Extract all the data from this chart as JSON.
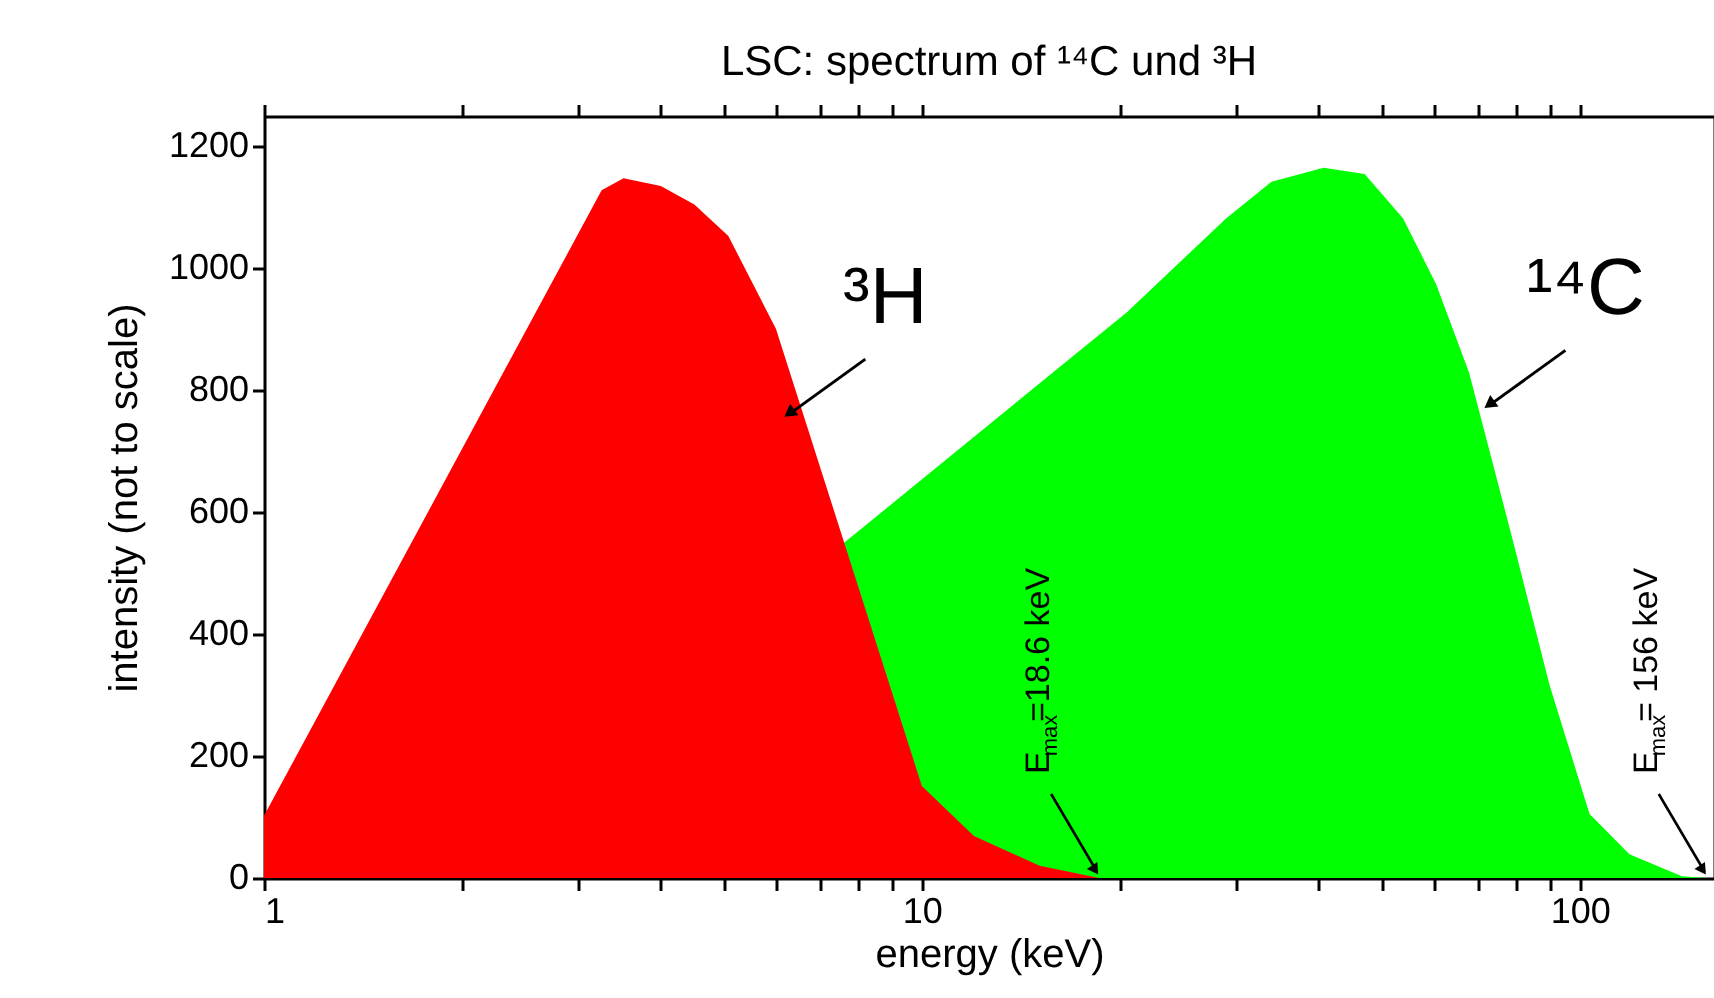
{
  "chart_data": {
    "type": "area",
    "title": "LSC: spectrum of ¹⁴C und ³H",
    "xlabel": "energy   (keV)",
    "ylabel": "intensity (not to scale)",
    "log": "x",
    "grid": false,
    "xlim": [
      1,
      160
    ],
    "xticks": [
      1,
      {
        "value": 2,
        "label": null
      },
      {
        "value": 3,
        "label": null
      },
      {
        "value": 4,
        "label": null
      },
      {
        "value": 5,
        "label": null
      },
      {
        "value": 6,
        "label": null
      },
      {
        "value": 7,
        "label": null
      },
      {
        "value": 8,
        "label": null
      },
      {
        "value": 9,
        "label": null
      },
      10,
      {
        "value": 20,
        "label": null
      },
      {
        "value": 30,
        "label": null
      },
      {
        "value": 40,
        "label": null
      },
      {
        "value": 50,
        "label": null
      },
      {
        "value": 60,
        "label": null
      },
      {
        "value": 70,
        "label": null
      },
      {
        "value": 80,
        "label": null
      },
      {
        "value": 90,
        "label": null
      },
      100
    ],
    "ylim": [
      0,
      1250
    ],
    "yticks": [
      0,
      {
        "value": 100,
        "label": null
      },
      200,
      {
        "value": 300,
        "label": null
      },
      400,
      {
        "value": 500,
        "label": null
      },
      600,
      {
        "value": 700,
        "label": null
      },
      800,
      {
        "value": 900,
        "label": null
      },
      1000,
      {
        "value": 1100,
        "label": null
      },
      1200
    ],
    "series": [
      {
        "name": "¹⁴C",
        "color": "#00ff00",
        "x": [
          7.6,
          10.3,
          14.5,
          20.5,
          29,
          34,
          40.8,
          47.1,
          53.9,
          60.5,
          67.9,
          78.6,
          90,
          103.5,
          119,
          143,
          156
        ],
        "values": [
          549,
          665,
          796,
          928,
          1082,
          1142,
          1165,
          1155,
          1082,
          974,
          829,
          566,
          316,
          105,
          39,
          3,
          0
        ]
      },
      {
        "name": "³H",
        "color": "#ff0000",
        "x": [
          1,
          3.26,
          3.52,
          4.01,
          4.51,
          5.08,
          6,
          10,
          12,
          15.1,
          18.6
        ],
        "values": [
          102,
          1128,
          1148,
          1135,
          1105,
          1053,
          901,
          151,
          69,
          20,
          0
        ]
      }
    ],
    "annotations": [
      {
        "text": "E$_{max}$=18.6 keV",
        "x": 18.6,
        "y": 0
      },
      {
        "text": "E$_{max}$= 156 keV",
        "x": 156,
        "y": 0
      }
    ]
  }
}
